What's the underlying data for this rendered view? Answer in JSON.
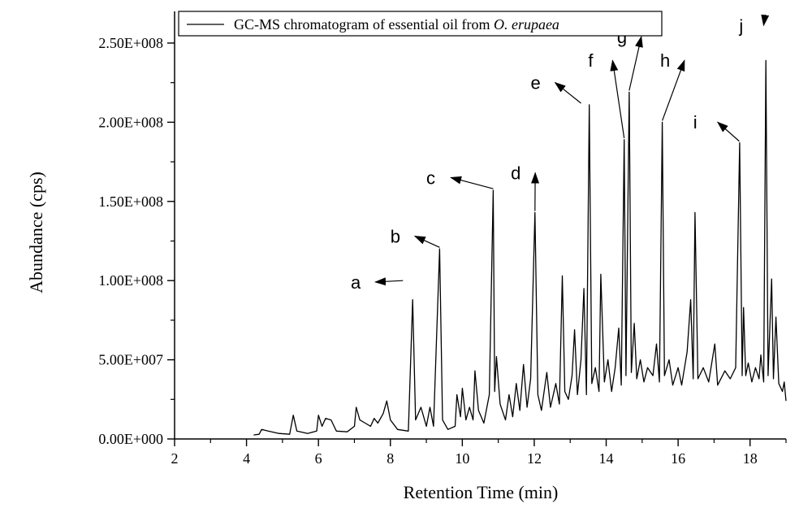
{
  "chart_data": {
    "type": "line",
    "legend": {
      "text": "GC-MS chromatogram of essential oil from ",
      "text_italic": "O. erupaea",
      "placement": "top-left"
    },
    "xlabel": "Retention Time (min)",
    "ylabel": "Abundance (cps)",
    "xlim": [
      2,
      19
    ],
    "ylim": [
      0,
      270000000
    ],
    "x_ticks": [
      2,
      4,
      6,
      8,
      10,
      12,
      14,
      16,
      18
    ],
    "x_tick_labels": [
      "2",
      "4",
      "6",
      "8",
      "10",
      "12",
      "14",
      "16",
      "18"
    ],
    "y_ticks": [
      0,
      50000000,
      100000000,
      150000000,
      200000000,
      250000000
    ],
    "y_tick_labels": [
      "0.00E+000",
      "5.00E+007",
      "1.00E+008",
      "1.50E+008",
      "2.00E+008",
      "2.50E+008"
    ],
    "grid": false,
    "series": [
      {
        "values": [
          [
            4.2,
            2500000
          ],
          [
            4.35,
            3000000
          ],
          [
            4.42,
            6000000
          ],
          [
            4.6,
            5000000
          ],
          [
            4.9,
            3500000
          ],
          [
            5.2,
            3000000
          ],
          [
            5.3,
            15000000
          ],
          [
            5.4,
            5000000
          ],
          [
            5.7,
            3500000
          ],
          [
            5.95,
            5000000
          ],
          [
            6.0,
            15000000
          ],
          [
            6.1,
            8000000
          ],
          [
            6.2,
            13000000
          ],
          [
            6.35,
            12000000
          ],
          [
            6.5,
            5000000
          ],
          [
            6.8,
            4500000
          ],
          [
            7.0,
            8000000
          ],
          [
            7.05,
            20000000
          ],
          [
            7.15,
            12000000
          ],
          [
            7.3,
            10000000
          ],
          [
            7.45,
            8000000
          ],
          [
            7.55,
            13000000
          ],
          [
            7.65,
            10000000
          ],
          [
            7.8,
            16000000
          ],
          [
            7.9,
            24000000
          ],
          [
            8.0,
            12000000
          ],
          [
            8.2,
            6000000
          ],
          [
            8.5,
            5000000
          ],
          [
            8.62,
            88000000
          ],
          [
            8.7,
            12000000
          ],
          [
            8.85,
            20000000
          ],
          [
            9.0,
            8000000
          ],
          [
            9.1,
            20000000
          ],
          [
            9.2,
            8000000
          ],
          [
            9.37,
            120000000
          ],
          [
            9.45,
            12000000
          ],
          [
            9.6,
            6000000
          ],
          [
            9.8,
            8000000
          ],
          [
            9.85,
            28000000
          ],
          [
            9.95,
            14000000
          ],
          [
            10.0,
            32000000
          ],
          [
            10.1,
            12000000
          ],
          [
            10.2,
            20000000
          ],
          [
            10.3,
            12000000
          ],
          [
            10.35,
            43000000
          ],
          [
            10.45,
            18000000
          ],
          [
            10.6,
            10000000
          ],
          [
            10.75,
            28000000
          ],
          [
            10.86,
            157000000
          ],
          [
            10.9,
            30000000
          ],
          [
            10.95,
            52000000
          ],
          [
            11.05,
            22000000
          ],
          [
            11.2,
            12000000
          ],
          [
            11.3,
            28000000
          ],
          [
            11.4,
            14000000
          ],
          [
            11.5,
            35000000
          ],
          [
            11.6,
            18000000
          ],
          [
            11.7,
            47000000
          ],
          [
            11.8,
            20000000
          ],
          [
            11.9,
            38000000
          ],
          [
            12.02,
            143000000
          ],
          [
            12.1,
            28000000
          ],
          [
            12.2,
            18000000
          ],
          [
            12.35,
            42000000
          ],
          [
            12.45,
            20000000
          ],
          [
            12.6,
            35000000
          ],
          [
            12.7,
            22000000
          ],
          [
            12.78,
            103000000
          ],
          [
            12.85,
            30000000
          ],
          [
            12.95,
            25000000
          ],
          [
            13.05,
            40000000
          ],
          [
            13.12,
            69000000
          ],
          [
            13.2,
            28000000
          ],
          [
            13.3,
            50000000
          ],
          [
            13.38,
            95000000
          ],
          [
            13.45,
            28000000
          ],
          [
            13.53,
            211000000
          ],
          [
            13.6,
            35000000
          ],
          [
            13.7,
            45000000
          ],
          [
            13.8,
            30000000
          ],
          [
            13.85,
            104000000
          ],
          [
            13.95,
            36000000
          ],
          [
            14.05,
            50000000
          ],
          [
            14.15,
            30000000
          ],
          [
            14.25,
            45000000
          ],
          [
            14.35,
            70000000
          ],
          [
            14.42,
            34000000
          ],
          [
            14.5,
            189000000
          ],
          [
            14.55,
            40000000
          ],
          [
            14.64,
            219000000
          ],
          [
            14.7,
            42000000
          ],
          [
            14.78,
            73000000
          ],
          [
            14.85,
            38000000
          ],
          [
            14.95,
            50000000
          ],
          [
            15.05,
            36000000
          ],
          [
            15.15,
            45000000
          ],
          [
            15.3,
            40000000
          ],
          [
            15.4,
            60000000
          ],
          [
            15.48,
            36000000
          ],
          [
            15.56,
            200000000
          ],
          [
            15.62,
            40000000
          ],
          [
            15.75,
            50000000
          ],
          [
            15.85,
            34000000
          ],
          [
            16.0,
            45000000
          ],
          [
            16.1,
            34000000
          ],
          [
            16.25,
            55000000
          ],
          [
            16.35,
            88000000
          ],
          [
            16.42,
            38000000
          ],
          [
            16.47,
            143000000
          ],
          [
            16.55,
            38000000
          ],
          [
            16.7,
            45000000
          ],
          [
            16.85,
            36000000
          ],
          [
            17.02,
            60000000
          ],
          [
            17.1,
            34000000
          ],
          [
            17.3,
            43000000
          ],
          [
            17.45,
            38000000
          ],
          [
            17.6,
            45000000
          ],
          [
            17.71,
            187000000
          ],
          [
            17.78,
            40000000
          ],
          [
            17.82,
            83000000
          ],
          [
            17.88,
            40000000
          ],
          [
            17.95,
            48000000
          ],
          [
            18.05,
            36000000
          ],
          [
            18.15,
            45000000
          ],
          [
            18.25,
            38000000
          ],
          [
            18.3,
            53000000
          ],
          [
            18.38,
            36000000
          ],
          [
            18.44,
            239000000
          ],
          [
            18.5,
            40000000
          ],
          [
            18.6,
            101000000
          ],
          [
            18.65,
            38000000
          ],
          [
            18.72,
            77000000
          ],
          [
            18.8,
            35000000
          ],
          [
            18.9,
            30000000
          ],
          [
            18.95,
            36000000
          ],
          [
            19.0,
            24000000
          ]
        ]
      }
    ],
    "annotations": [
      {
        "label": "a",
        "x": 8.62,
        "y": 88000000,
        "text_x": 8.35,
        "text_y": 100000000,
        "label_x": 6.9,
        "label_y": 95000000
      },
      {
        "label": "b",
        "x": 9.37,
        "y": 120000000,
        "text_x": 9.37,
        "text_y": 121000000,
        "label_x": 8.0,
        "label_y": 124000000
      },
      {
        "label": "c",
        "x": 10.86,
        "y": 157000000,
        "text_x": 10.86,
        "text_y": 158000000,
        "label_x": 9.0,
        "label_y": 161000000
      },
      {
        "label": "d",
        "x": 12.02,
        "y": 143000000,
        "text_x": 12.02,
        "text_y": 144000000,
        "label_x": 11.35,
        "label_y": 164000000
      },
      {
        "label": "e",
        "x": 13.53,
        "y": 211000000,
        "text_x": 13.3,
        "text_y": 212000000,
        "label_x": 11.9,
        "label_y": 221000000
      },
      {
        "label": "f",
        "x": 14.5,
        "y": 189000000,
        "text_x": 14.5,
        "text_y": 190000000,
        "label_x": 13.5,
        "label_y": 235000000
      },
      {
        "label": "g",
        "x": 14.64,
        "y": 219000000,
        "text_x": 14.64,
        "text_y": 220000000,
        "label_x": 14.3,
        "label_y": 250000000
      },
      {
        "label": "h",
        "x": 15.56,
        "y": 200000000,
        "text_x": 15.56,
        "text_y": 201000000,
        "label_x": 15.5,
        "label_y": 235000000
      },
      {
        "label": "i",
        "x": 17.71,
        "y": 187000000,
        "text_x": 17.7,
        "text_y": 188000000,
        "label_x": 16.42,
        "label_y": 196000000
      },
      {
        "label": "j",
        "x": 18.44,
        "y": 239000000,
        "text_x": 18.42,
        "text_y": 268000000,
        "label_x": 17.7,
        "label_y": 257000000
      }
    ]
  }
}
